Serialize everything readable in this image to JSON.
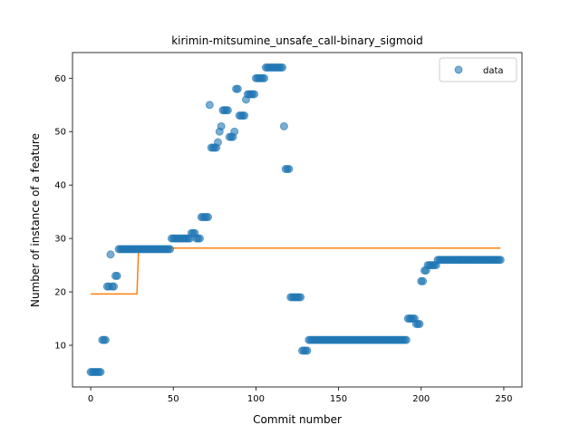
{
  "chart_data": {
    "type": "scatter",
    "title": "kirimin-mitsumine_unsafe_call-binary_sigmoid",
    "xlabel": "Commit number",
    "ylabel": "Number of instance of a feature",
    "xlim": [
      -11,
      261
    ],
    "ylim": [
      2.2,
      64.8
    ],
    "xticks": [
      0,
      50,
      100,
      150,
      200,
      250
    ],
    "yticks": [
      10,
      20,
      30,
      40,
      50,
      60
    ],
    "legend": {
      "location": "top-right",
      "entries": [
        "data"
      ]
    },
    "grid": false,
    "colors": {
      "data": "#1f77b4",
      "fit": "#ff7f0e"
    },
    "series": [
      {
        "name": "data",
        "kind": "scatter",
        "x": [
          0,
          1,
          2,
          3,
          4,
          5,
          6,
          7,
          8,
          9,
          10,
          11,
          12,
          13,
          14,
          15,
          16,
          17,
          18,
          19,
          20,
          21,
          22,
          23,
          24,
          25,
          26,
          27,
          28,
          29,
          30,
          31,
          32,
          33,
          34,
          35,
          36,
          37,
          38,
          39,
          40,
          41,
          42,
          43,
          44,
          45,
          46,
          47,
          48,
          49,
          50,
          51,
          52,
          53,
          54,
          55,
          56,
          57,
          58,
          59,
          60,
          61,
          62,
          63,
          64,
          65,
          66,
          67,
          68,
          69,
          70,
          71,
          72,
          73,
          74,
          75,
          76,
          77,
          78,
          79,
          80,
          81,
          82,
          83,
          84,
          85,
          86,
          87,
          88,
          89,
          90,
          91,
          92,
          93,
          94,
          95,
          96,
          97,
          98,
          99,
          100,
          101,
          102,
          103,
          104,
          105,
          106,
          107,
          108,
          109,
          110,
          111,
          112,
          113,
          114,
          115,
          116,
          117,
          118,
          119,
          120,
          121,
          122,
          123,
          124,
          125,
          126,
          127,
          128,
          129,
          130,
          131,
          132,
          133,
          134,
          135,
          136,
          137,
          138,
          139,
          140,
          141,
          142,
          143,
          144,
          145,
          146,
          147,
          148,
          149,
          150,
          151,
          152,
          153,
          154,
          155,
          156,
          157,
          158,
          159,
          160,
          161,
          162,
          163,
          164,
          165,
          166,
          167,
          168,
          169,
          170,
          171,
          172,
          173,
          174,
          175,
          176,
          177,
          178,
          179,
          180,
          181,
          182,
          183,
          184,
          185,
          186,
          187,
          188,
          189,
          190,
          191,
          192,
          193,
          194,
          195,
          196,
          197,
          198,
          199,
          200,
          201,
          202,
          203,
          204,
          205,
          206,
          207,
          208,
          209,
          210,
          211,
          212,
          213,
          214,
          215,
          216,
          217,
          218,
          219,
          220,
          221,
          222,
          223,
          224,
          225,
          226,
          227,
          228,
          229,
          230,
          231,
          232,
          233,
          234,
          235,
          236,
          237,
          238,
          239,
          240,
          241,
          242,
          243,
          244,
          245,
          246,
          247,
          248
        ],
        "y": [
          5,
          5,
          5,
          5,
          5,
          5,
          5,
          11,
          11,
          11,
          21,
          21,
          27,
          21,
          21,
          23,
          23,
          28,
          28,
          28,
          28,
          28,
          28,
          28,
          28,
          28,
          28,
          28,
          28,
          28,
          28,
          28,
          28,
          28,
          28,
          28,
          28,
          28,
          28,
          28,
          28,
          28,
          28,
          28,
          28,
          28,
          28,
          28,
          28,
          30,
          30,
          30,
          30,
          30,
          30,
          30,
          30,
          30,
          30,
          30,
          30,
          31,
          31,
          31,
          30,
          30,
          30,
          34,
          34,
          34,
          34,
          34,
          55,
          47,
          47,
          47,
          47,
          48,
          50,
          51,
          54,
          54,
          54,
          54,
          49,
          49,
          49,
          50,
          58,
          58,
          53,
          53,
          53,
          53,
          56,
          57,
          57,
          57,
          57,
          57,
          60,
          60,
          60,
          60,
          60,
          60,
          62,
          62,
          62,
          62,
          62,
          62,
          62,
          62,
          62,
          62,
          62,
          51,
          43,
          43,
          43,
          19,
          19,
          19,
          19,
          19,
          19,
          19,
          9,
          9,
          9,
          9,
          11,
          11,
          11,
          11,
          11,
          11,
          11,
          11,
          11,
          11,
          11,
          11,
          11,
          11,
          11,
          11,
          11,
          11,
          11,
          11,
          11,
          11,
          11,
          11,
          11,
          11,
          11,
          11,
          11,
          11,
          11,
          11,
          11,
          11,
          11,
          11,
          11,
          11,
          11,
          11,
          11,
          11,
          11,
          11,
          11,
          11,
          11,
          11,
          11,
          11,
          11,
          11,
          11,
          11,
          11,
          11,
          11,
          11,
          11,
          11,
          15,
          15,
          15,
          15,
          15,
          14,
          14,
          14,
          22,
          22,
          24,
          24,
          25,
          25,
          25,
          25,
          25,
          25,
          26,
          26,
          26,
          26,
          26,
          26,
          26,
          26,
          26,
          26,
          26,
          26,
          26,
          26,
          26,
          26,
          26,
          26,
          26,
          26,
          26,
          26,
          26,
          26,
          26,
          26,
          26,
          26,
          26,
          26,
          26,
          26,
          26,
          26,
          26,
          26,
          26,
          26,
          26
        ]
      },
      {
        "kind": "line",
        "x": [
          0,
          28,
          29,
          248
        ],
        "y": [
          19.6,
          19.6,
          28.2,
          28.2
        ]
      }
    ]
  }
}
